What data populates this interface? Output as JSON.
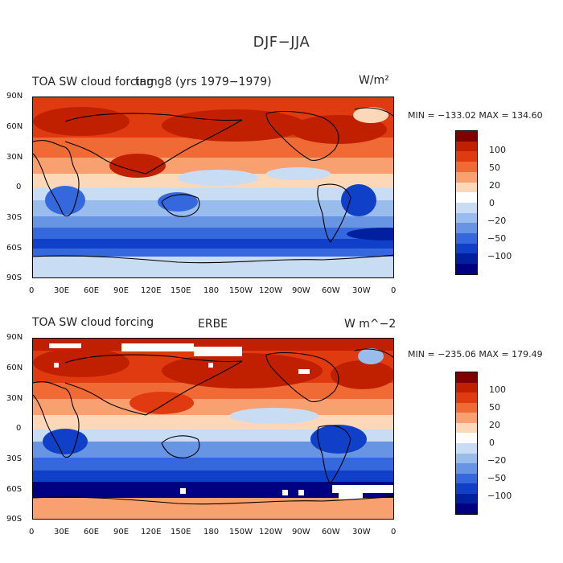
{
  "figure": {
    "title": "DJF−JJA"
  },
  "panels": [
    {
      "title_left": "TOA SW cloud forcing",
      "title_center": "tamg8 (yrs 1979−1979)",
      "units": "W/m²",
      "min_max": "MIN = −133.02  MAX = 134.60",
      "has_missing": false
    },
    {
      "title_left": "TOA SW cloud forcing",
      "title_center": "ERBE",
      "units": "W m^−2",
      "min_max": "MIN = −235.06  MAX = 179.49",
      "has_missing": true
    }
  ],
  "axes": {
    "lat_labels": [
      "90N",
      "60N",
      "30N",
      "0",
      "30S",
      "60S",
      "90S"
    ],
    "lon_labels": [
      "0",
      "30E",
      "60E",
      "90E",
      "120E",
      "150E",
      "180",
      "150W",
      "120W",
      "90W",
      "60W",
      "30W",
      "0"
    ]
  },
  "colorbar": {
    "colors": [
      "#800000",
      "#c02000",
      "#e03a10",
      "#f06a35",
      "#f8a070",
      "#fcd8b8",
      "#ffffff",
      "#c8dcf4",
      "#98bcec",
      "#6894e4",
      "#3468dc",
      "#1040c8",
      "#0020a0",
      "#000080"
    ],
    "labels": [
      "100",
      "50",
      "20",
      "0",
      "−20",
      "−50",
      "−100"
    ]
  }
}
